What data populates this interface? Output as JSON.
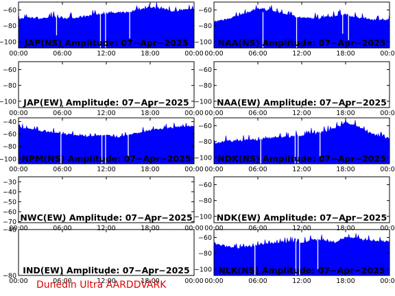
{
  "footer_text": "Dunedin Ultra AARDDVARK",
  "colors": {
    "signal": "#0000ff",
    "axes": "#000000",
    "footer": "#e00000",
    "background": "#ffffff"
  },
  "chart_data": [
    {
      "type": "area",
      "title": "JAP(NS) Amplitude: 07-Apr-2025",
      "x_ticks": [
        "00:00",
        "06:00",
        "12:00",
        "18:00",
        "00:00"
      ],
      "y_ticks": [
        -100,
        -80,
        -60
      ],
      "ylim": [
        -108,
        -50
      ],
      "x_hours": [
        0,
        1.5,
        3,
        4.5,
        6,
        7.5,
        9,
        10.5,
        12,
        13.5,
        15,
        16.5,
        18,
        19.5,
        21,
        22.5,
        24
      ],
      "y": [
        -72,
        -70,
        -71,
        -69,
        -70,
        -71,
        -68,
        -66,
        -65,
        -64,
        -63,
        -60,
        -57,
        -58,
        -62,
        -60,
        -60
      ],
      "dropouts": [
        {
          "hour": 5.2,
          "to": -92
        },
        {
          "hour": 11.2,
          "to": -108
        },
        {
          "hour": 11.9,
          "to": -108
        },
        {
          "hour": 15.2,
          "to": -96
        }
      ]
    },
    {
      "type": "area",
      "title": "NAA(NS) Amplitude: 07-Apr-2025",
      "x_ticks": [
        "00:00",
        "06:00",
        "12:00",
        "18:00",
        "00:00"
      ],
      "y_ticks": [
        -100,
        -80,
        -60
      ],
      "ylim": [
        -108,
        -50
      ],
      "x_hours": [
        0,
        1.5,
        3,
        4.5,
        6,
        7.5,
        9,
        10.5,
        12,
        13.5,
        15,
        16.5,
        18,
        19.5,
        21,
        22.5,
        24
      ],
      "y": [
        -75,
        -72,
        -68,
        -64,
        -58,
        -60,
        -64,
        -67,
        -70,
        -71,
        -70,
        -67,
        -66,
        -69,
        -72,
        -73,
        -72
      ],
      "dropouts": [
        {
          "hour": 6.7,
          "to": -108
        },
        {
          "hour": 11.3,
          "to": -108
        },
        {
          "hour": 17.6,
          "to": -90
        },
        {
          "hour": 18.4,
          "to": -98
        }
      ]
    },
    {
      "type": "area",
      "title": "JAP(EW) Amplitude: 07-Apr-2025",
      "x_ticks": [
        "00:00",
        "06:00",
        "12:00",
        "18:00",
        "00:00"
      ],
      "y_ticks": [
        -100,
        -80,
        -60
      ],
      "ylim": [
        -108,
        -50
      ],
      "x_hours": [],
      "y": [],
      "dropouts": []
    },
    {
      "type": "area",
      "title": "NAA(EW) Amplitude: 07-Apr-2025",
      "x_ticks": [
        "00:00",
        "06:00",
        "12:00",
        "18:00",
        "00:00"
      ],
      "y_ticks": [
        -100,
        -80,
        -60
      ],
      "ylim": [
        -108,
        -50
      ],
      "x_hours": [],
      "y": [],
      "dropouts": []
    },
    {
      "type": "area",
      "title": "NPM(NS) Amplitude: 07-Apr-2025",
      "x_ticks": [
        "00:00",
        "06:00",
        "12:00",
        "18:00",
        "00:00"
      ],
      "y_ticks": [
        -100,
        -80,
        -60,
        -40
      ],
      "ylim": [
        -108,
        -34
      ],
      "x_hours": [
        0,
        1.5,
        3,
        4.5,
        6,
        7.5,
        9,
        10.5,
        12,
        13.5,
        15,
        16.5,
        18,
        19.5,
        21,
        22.5,
        24
      ],
      "y": [
        -50,
        -52,
        -55,
        -58,
        -60,
        -62,
        -64,
        -63,
        -62,
        -66,
        -62,
        -58,
        -54,
        -52,
        -50,
        -48,
        -47
      ],
      "dropouts": [
        {
          "hour": 5.8,
          "to": -108
        },
        {
          "hour": 11.4,
          "to": -108
        },
        {
          "hour": 11.9,
          "to": -108
        },
        {
          "hour": 15.0,
          "to": -100
        }
      ]
    },
    {
      "type": "area",
      "title": "NDK(NS) Amplitude: 07-Apr-2025",
      "x_ticks": [
        "00:00",
        "06:00",
        "12:00",
        "18:00",
        "00:00"
      ],
      "y_ticks": [
        -100,
        -80,
        -60
      ],
      "ylim": [
        -108,
        -50
      ],
      "x_hours": [
        0,
        1.5,
        3,
        4.5,
        6,
        7.5,
        9,
        10.5,
        12,
        13.5,
        15,
        16.5,
        18,
        19.5,
        21,
        22.5,
        24
      ],
      "y": [
        -82,
        -80,
        -79,
        -78,
        -78,
        -76,
        -75,
        -74,
        -73,
        -70,
        -68,
        -64,
        -56,
        -60,
        -68,
        -74,
        -76
      ],
      "dropouts": [
        {
          "hour": 6.4,
          "to": -108
        },
        {
          "hour": 11.1,
          "to": -108
        },
        {
          "hour": 11.5,
          "to": -108
        },
        {
          "hour": 14.5,
          "to": -100
        }
      ]
    },
    {
      "type": "area",
      "title": "NWC(EW) Amplitude: 07-Apr-2025",
      "x_ticks": [
        "00:00",
        "06:00",
        "12:00",
        "18:00",
        "00:00"
      ],
      "y_ticks": [
        -70,
        -60,
        -50,
        -40,
        -30
      ],
      "ylim": [
        -71,
        -25
      ],
      "x_hours": [],
      "y": [],
      "dropouts": []
    },
    {
      "type": "area",
      "title": "NDK(EW) Amplitude: 07-Apr-2025",
      "x_ticks": [
        "00:00",
        "06:00",
        "12:00",
        "18:00",
        "00:00"
      ],
      "y_ticks": [
        -100,
        -80,
        -60
      ],
      "ylim": [
        -108,
        -50
      ],
      "x_hours": [],
      "y": [],
      "dropouts": []
    },
    {
      "type": "area",
      "title": "IND(EW) Amplitude: 07-Apr-2025",
      "x_ticks": [
        "00:00",
        "06:00",
        "12:00",
        "18:00",
        "00:00"
      ],
      "y_ticks": [
        -80,
        -40
      ],
      "ylim": [
        -80,
        -40
      ],
      "x_hours": [],
      "y": [],
      "dropouts": []
    },
    {
      "type": "area",
      "title": "NLK(NS) Amplitude: 07-Apr-2025",
      "x_ticks": [
        "00:00",
        "06:00",
        "12:00",
        "18:00",
        "00:00"
      ],
      "y_ticks": [
        -100,
        -80,
        -60
      ],
      "ylim": [
        -108,
        -50
      ],
      "x_hours": [
        0,
        1.5,
        3,
        4.5,
        6,
        7.5,
        9,
        10.5,
        12,
        13.5,
        15,
        16.5,
        18,
        19.5,
        21,
        22.5,
        24
      ],
      "y": [
        -68,
        -71,
        -73,
        -72,
        -70,
        -68,
        -66,
        -66,
        -67,
        -63,
        -64,
        -66,
        -60,
        -62,
        -64,
        -65,
        -65
      ],
      "dropouts": [
        {
          "hour": 5.6,
          "to": -108
        },
        {
          "hour": 11.2,
          "to": -108
        },
        {
          "hour": 11.7,
          "to": -108
        },
        {
          "hour": 14.2,
          "to": -100
        }
      ]
    }
  ]
}
